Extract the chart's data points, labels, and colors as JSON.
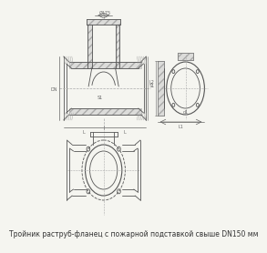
{
  "title": "Тройник раструб-фланец с пожарной подставкой свыше DN150 мм",
  "title_fontsize": 5.5,
  "bg_color": "#f5f5f0",
  "line_color": "#555555",
  "hatch_color": "#888888",
  "dim_color": "#666666"
}
